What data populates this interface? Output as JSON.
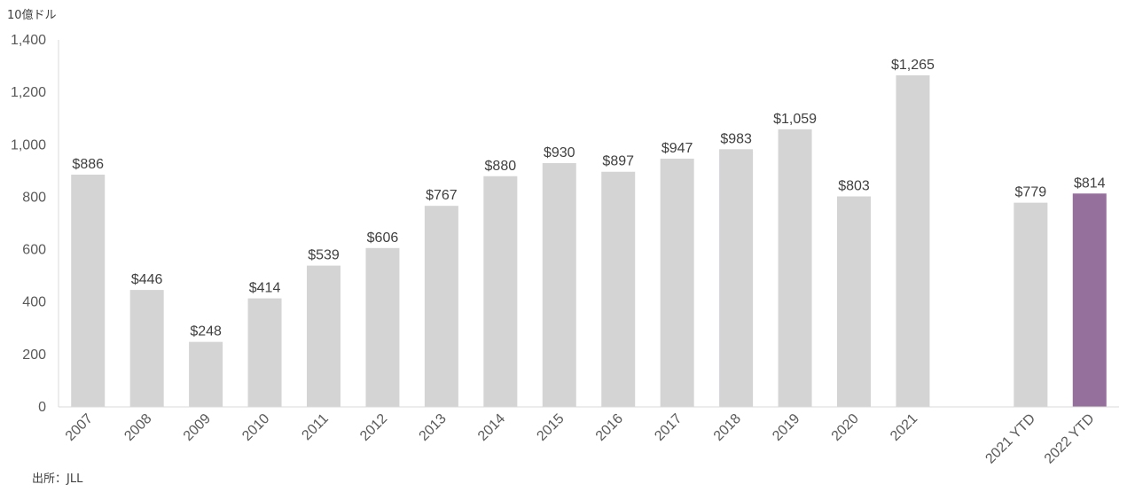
{
  "chart_data": {
    "type": "bar",
    "unit_label": "10億ドル",
    "source": "出所：JLL",
    "categories": [
      "2007",
      "2008",
      "2009",
      "2010",
      "2011",
      "2012",
      "2013",
      "2014",
      "2015",
      "2016",
      "2017",
      "2018",
      "2019",
      "2020",
      "2021",
      "",
      "2021 YTD",
      "2022 YTD"
    ],
    "values": [
      886,
      446,
      248,
      414,
      539,
      606,
      767,
      880,
      930,
      897,
      947,
      983,
      1059,
      803,
      1265,
      null,
      779,
      814
    ],
    "data_labels": [
      "$886",
      "$446",
      "$248",
      "$414",
      "$539",
      "$606",
      "$767",
      "$880",
      "$930",
      "$897",
      "$947",
      "$983",
      "$1,059",
      "$803",
      "$1,265",
      "",
      "$779",
      "$814"
    ],
    "highlight_index": 17,
    "ylim": [
      0,
      1400
    ],
    "yticks": [
      0,
      200,
      400,
      600,
      800,
      1000,
      1200,
      1400
    ],
    "ytick_labels": [
      "0",
      "200",
      "400",
      "600",
      "800",
      "1,000",
      "1,200",
      "1,400"
    ],
    "grid": false,
    "colors": {
      "bar": "#d4d4d5",
      "highlight": "#96709c",
      "axis": "#d9d9d9",
      "text": "#404040"
    }
  }
}
